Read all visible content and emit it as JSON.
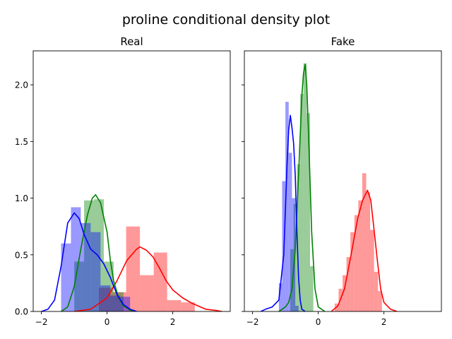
{
  "figure": {
    "title": "proline conditional density plot"
  },
  "colors": {
    "red": "#ff0000",
    "green": "#008000",
    "blue": "#0000ff"
  },
  "chart_data": [
    {
      "type": "histogram+kde",
      "title": "Real",
      "xlim": [
        -2.25,
        3.75
      ],
      "ylim": [
        0,
        2.3
      ],
      "xticks": [
        -2,
        0,
        2
      ],
      "yticks": [
        0.0,
        0.5,
        1.0,
        1.5,
        2.0
      ],
      "xtick_labels": [
        "−2",
        "0",
        "2"
      ],
      "ytick_labels": [
        "0.0",
        "0.5",
        "1.0",
        "1.5",
        "2.0"
      ],
      "grid": false,
      "series": [
        {
          "color": "#ff0000",
          "histogram": {
            "edges": [
              -0.25,
              0.17,
              0.58,
              1.0,
              1.42,
              1.83,
              2.25,
              2.67
            ],
            "density": [
              0.21,
              0.17,
              0.75,
              0.32,
              0.52,
              0.1,
              0.08
            ]
          },
          "kde": {
            "x": [
              -1.0,
              -0.5,
              0.0,
              0.3,
              0.6,
              0.9,
              1.0,
              1.2,
              1.4,
              1.6,
              1.8,
              2.0,
              2.3,
              2.6,
              3.0,
              3.3,
              3.5
            ],
            "y": [
              0.0,
              0.02,
              0.12,
              0.27,
              0.45,
              0.55,
              0.57,
              0.54,
              0.48,
              0.38,
              0.27,
              0.19,
              0.12,
              0.07,
              0.02,
              0.01,
              0.0
            ]
          }
        },
        {
          "color": "#008000",
          "histogram": {
            "edges": [
              -1.0,
              -0.7,
              -0.4,
              -0.1,
              0.2,
              0.5
            ],
            "density": [
              0.44,
              0.98,
              0.99,
              0.44,
              0.17
            ]
          },
          "kde": {
            "x": [
              -1.4,
              -1.2,
              -1.0,
              -0.8,
              -0.6,
              -0.45,
              -0.35,
              -0.2,
              0.0,
              0.1,
              0.2,
              0.35,
              0.5,
              0.7,
              0.9
            ],
            "y": [
              0.0,
              0.04,
              0.22,
              0.55,
              0.85,
              1.0,
              1.03,
              0.96,
              0.7,
              0.45,
              0.27,
              0.12,
              0.05,
              0.01,
              0.0
            ]
          }
        },
        {
          "color": "#0000ff",
          "histogram": {
            "edges": [
              -1.4,
              -1.1,
              -0.8,
              -0.5,
              -0.2,
              0.1,
              0.4,
              0.7
            ],
            "density": [
              0.6,
              0.92,
              0.78,
              0.7,
              0.23,
              0.14,
              0.13
            ]
          },
          "kde": {
            "x": [
              -2.0,
              -1.8,
              -1.6,
              -1.4,
              -1.2,
              -1.0,
              -0.85,
              -0.7,
              -0.5,
              -0.3,
              -0.1,
              0.1,
              0.3,
              0.5,
              0.7,
              0.9
            ],
            "y": [
              0.0,
              0.02,
              0.1,
              0.4,
              0.78,
              0.87,
              0.82,
              0.68,
              0.55,
              0.5,
              0.42,
              0.3,
              0.15,
              0.06,
              0.02,
              0.0
            ]
          }
        }
      ]
    },
    {
      "type": "histogram+kde",
      "title": "Fake",
      "xlim": [
        -2.25,
        3.75
      ],
      "ylim": [
        0,
        2.3
      ],
      "xticks": [
        -2,
        0,
        2
      ],
      "yticks": [
        0.0,
        0.5,
        1.0,
        1.5,
        2.0
      ],
      "xtick_labels": [
        "−2",
        "0",
        "2"
      ],
      "ytick_labels": [],
      "grid": false,
      "series": [
        {
          "color": "#ff0000",
          "histogram": {
            "edges": [
              0.5,
              0.62,
              0.74,
              0.86,
              0.98,
              1.1,
              1.22,
              1.34,
              1.46,
              1.58,
              1.7,
              1.82,
              1.94
            ],
            "density": [
              0.07,
              0.2,
              0.32,
              0.48,
              0.7,
              0.85,
              0.98,
              1.22,
              1.05,
              0.72,
              0.35,
              0.18
            ]
          },
          "kde": {
            "x": [
              0.4,
              0.6,
              0.8,
              1.0,
              1.2,
              1.35,
              1.5,
              1.6,
              1.7,
              1.8,
              1.9,
              2.0,
              2.2,
              2.4
            ],
            "y": [
              0.0,
              0.05,
              0.2,
              0.5,
              0.82,
              0.98,
              1.07,
              0.98,
              0.72,
              0.45,
              0.2,
              0.08,
              0.02,
              0.0
            ]
          }
        },
        {
          "color": "#008000",
          "histogram": {
            "edges": [
              -0.85,
              -0.75,
              -0.65,
              -0.55,
              -0.45,
              -0.35,
              -0.25,
              -0.15
            ],
            "density": [
              0.55,
              0.95,
              1.3,
              1.92,
              2.19,
              1.75,
              0.4
            ]
          },
          "kde": {
            "x": [
              -1.2,
              -1.0,
              -0.9,
              -0.8,
              -0.7,
              -0.6,
              -0.5,
              -0.45,
              -0.4,
              -0.35,
              -0.3,
              -0.2,
              -0.1,
              0.0,
              0.2
            ],
            "y": [
              0.0,
              0.04,
              0.08,
              0.2,
              0.55,
              1.2,
              1.9,
              2.1,
              2.18,
              2.0,
              1.6,
              0.7,
              0.2,
              0.04,
              0.0
            ]
          }
        },
        {
          "color": "#0000ff",
          "histogram": {
            "edges": [
              -1.2,
              -1.1,
              -1.0,
              -0.9,
              -0.8,
              -0.7,
              -0.6
            ],
            "density": [
              0.25,
              1.15,
              1.85,
              1.4,
              1.0,
              0.05
            ]
          },
          "kde": {
            "x": [
              -1.75,
              -1.6,
              -1.4,
              -1.2,
              -1.05,
              -0.95,
              -0.9,
              -0.85,
              -0.8,
              -0.75,
              -0.7,
              -0.65,
              -0.6,
              -0.55,
              -0.5,
              -0.4
            ],
            "y": [
              0.0,
              0.02,
              0.04,
              0.1,
              0.5,
              1.3,
              1.6,
              1.73,
              1.62,
              1.48,
              1.2,
              0.7,
              0.3,
              0.1,
              0.02,
              0.0
            ]
          }
        }
      ]
    }
  ]
}
